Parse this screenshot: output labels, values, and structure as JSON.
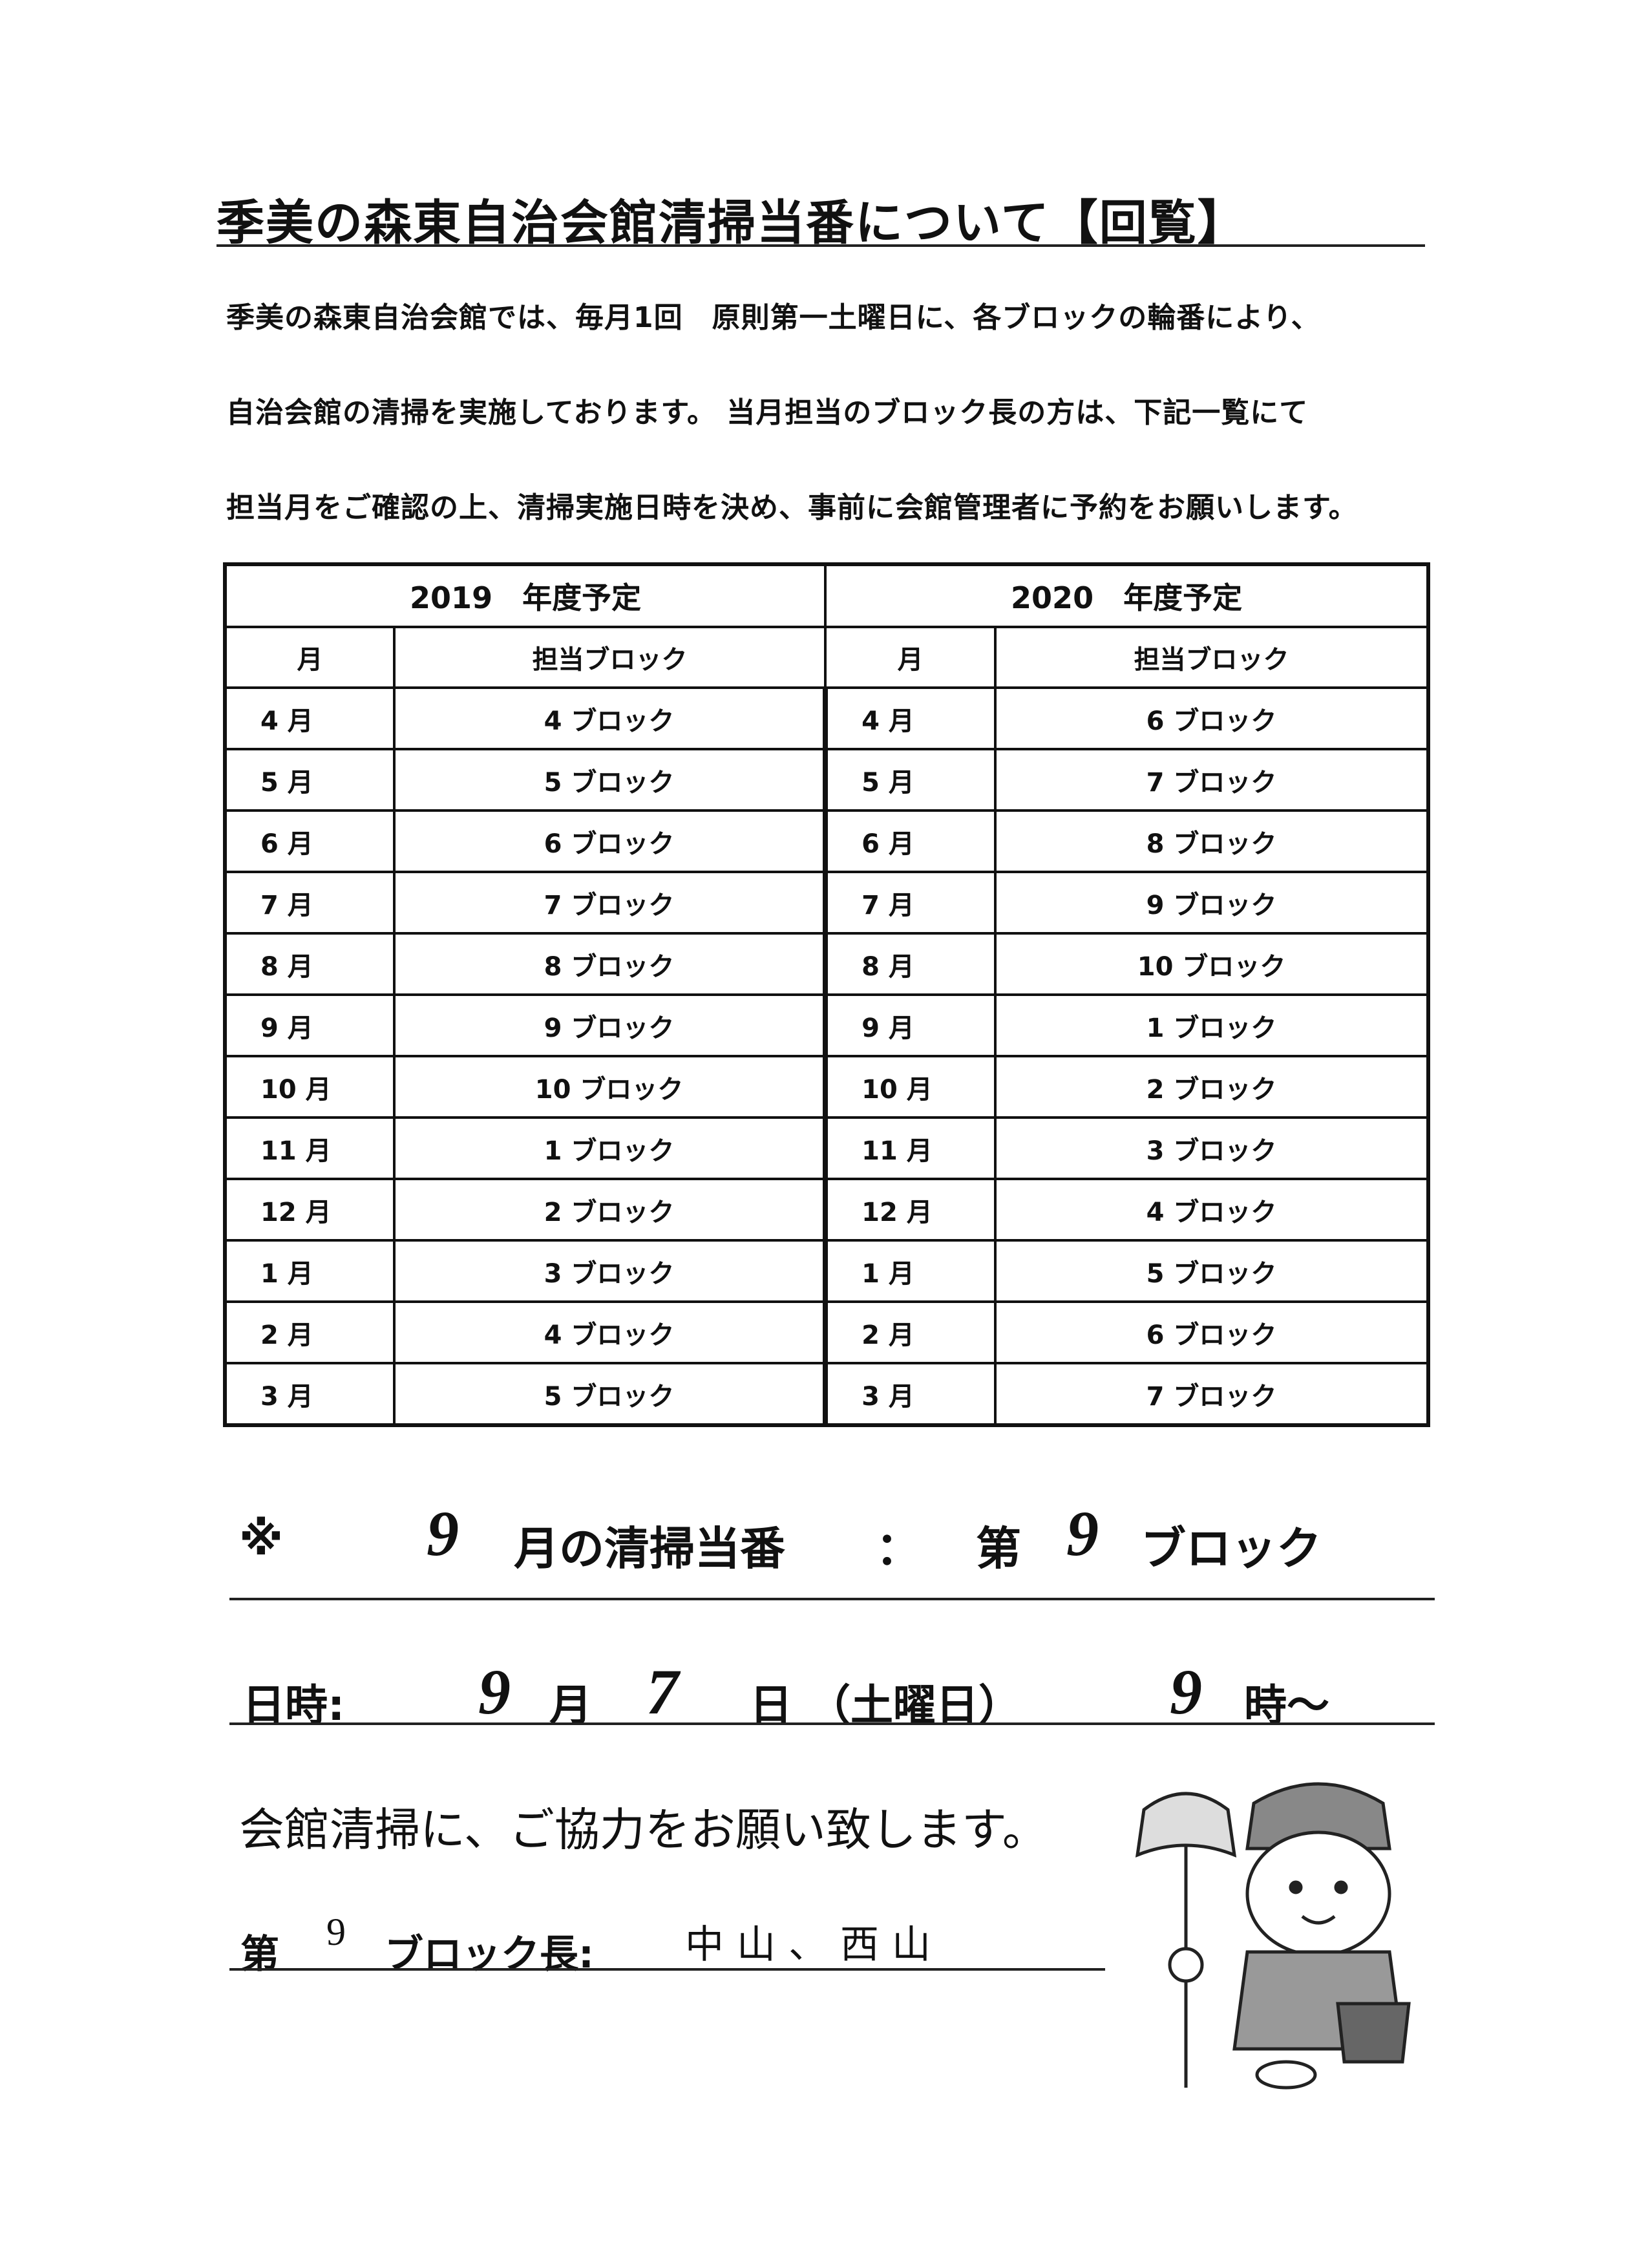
{
  "title": "季美の森東自治会館清掃当番について【回覧】",
  "intro": [
    "季美の森東自治会館では、毎月1回　原則第一土曜日に、各ブロックの輪番により、",
    "自治会館の清掃を実施しております。 当月担当のブロック長の方は、下記一覧にて",
    "担当月をご確認の上、清掃実施日時を決め、事前に会館管理者に予約をお願いします。"
  ],
  "schedule": {
    "year_2019": "2019　年度予定",
    "year_2020": "2020　年度予定",
    "col_month": "月",
    "col_block": "担当ブロック",
    "rows": [
      {
        "m1": "4 月",
        "b1": "4 ブロック",
        "m2": "4 月",
        "b2": "6 ブロック"
      },
      {
        "m1": "5 月",
        "b1": "5 ブロック",
        "m2": "5 月",
        "b2": "7 ブロック"
      },
      {
        "m1": "6 月",
        "b1": "6 ブロック",
        "m2": "6 月",
        "b2": "8 ブロック"
      },
      {
        "m1": "7 月",
        "b1": "7 ブロック",
        "m2": "7 月",
        "b2": "9 ブロック"
      },
      {
        "m1": "8 月",
        "b1": "8 ブロック",
        "m2": "8 月",
        "b2": "10 ブロック"
      },
      {
        "m1": "9 月",
        "b1": "9 ブロック",
        "m2": "9 月",
        "b2": "1 ブロック"
      },
      {
        "m1": "10 月",
        "b1": "10 ブロック",
        "m2": "10 月",
        "b2": "2 ブロック"
      },
      {
        "m1": "11 月",
        "b1": "1 ブロック",
        "m2": "11 月",
        "b2": "3 ブロック"
      },
      {
        "m1": "12 月",
        "b1": "2 ブロック",
        "m2": "12 月",
        "b2": "4 ブロック"
      },
      {
        "m1": "1 月",
        "b1": "3 ブロック",
        "m2": "1 月",
        "b2": "5 ブロック"
      },
      {
        "m1": "2 月",
        "b1": "4 ブロック",
        "m2": "2 月",
        "b2": "6 ブロック"
      },
      {
        "m1": "3 月",
        "b1": "5 ブロック",
        "m2": "3 月",
        "b2": "7 ブロック"
      }
    ]
  },
  "duty": {
    "mark": "※",
    "month": "9",
    "month_label": "月の清掃当番",
    "colon": "：",
    "dai": "第",
    "block_no": "9",
    "block_label": "ブロック"
  },
  "datetime": {
    "label": "日時:",
    "month": "9",
    "month_unit": "月",
    "day": "7",
    "day_unit": "日",
    "weekday": "（土曜日）",
    "hour": "9",
    "hour_unit": "時～"
  },
  "request": "会館清掃に、ご協力をお願い致します。",
  "leader": {
    "dai": "第",
    "block_no": "9",
    "label": "ブロック長:",
    "names": "中山、西山"
  }
}
